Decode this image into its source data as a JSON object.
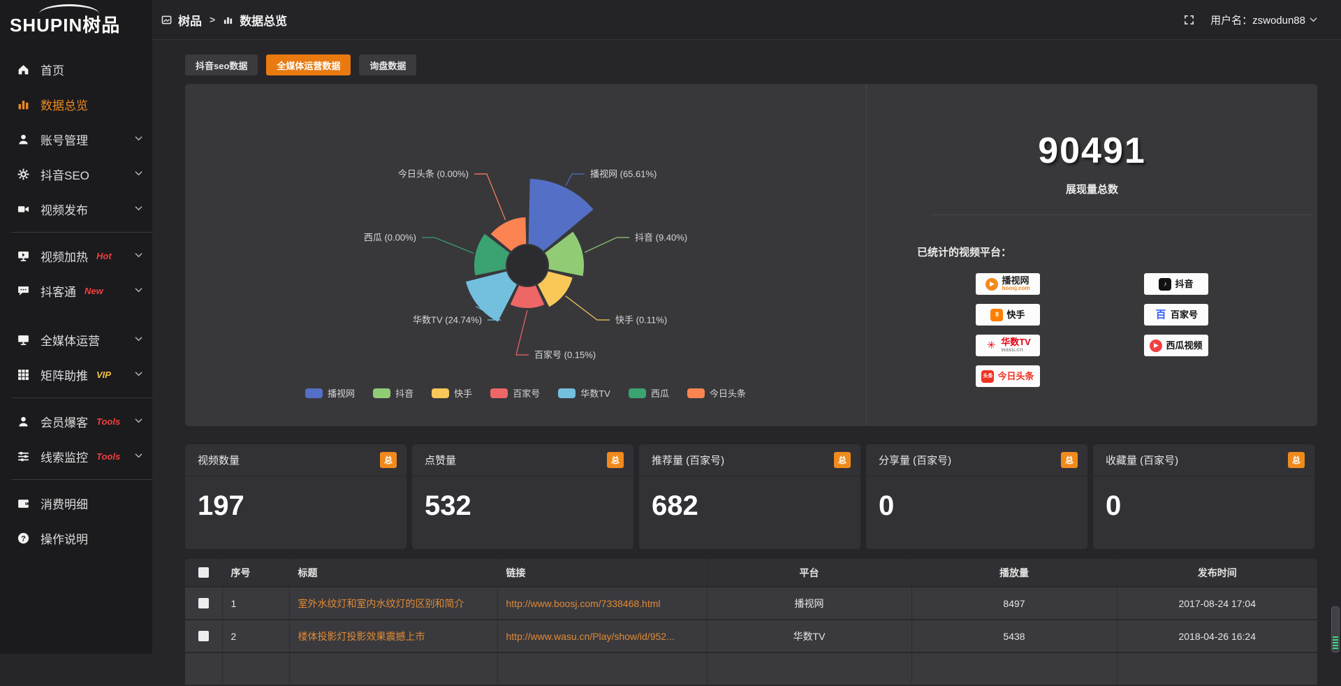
{
  "app": {
    "logo_text": "SHUPIN树品"
  },
  "topbar": {
    "breadcrumb": {
      "root": "树品",
      "separator": ">",
      "current": "数据总览"
    },
    "username_label": "用户名：zswodun88"
  },
  "sidebar": {
    "items": [
      {
        "label": "首页",
        "icon": "home"
      },
      {
        "label": "数据总览",
        "icon": "chart",
        "active": true
      },
      {
        "label": "账号管理",
        "icon": "user",
        "chevron": true
      },
      {
        "label": "抖音SEO",
        "icon": "gear",
        "chevron": true
      },
      {
        "label": "视频发布",
        "icon": "video",
        "chevron": true,
        "divider_after": true
      },
      {
        "label": "视频加热",
        "icon": "monitor-play",
        "badge": "Hot",
        "badge_color": "#f03e3e",
        "chevron": true
      },
      {
        "label": "抖客通",
        "icon": "chat",
        "badge": "New",
        "badge_color": "#f03e3e",
        "chevron": true,
        "gap_after": true
      },
      {
        "label": "全媒体运营",
        "icon": "monitor",
        "chevron": true
      },
      {
        "label": "矩阵助推",
        "icon": "grid",
        "badge": "VIP",
        "badge_color": "#f0c23c",
        "chevron": true,
        "divider_after": true
      },
      {
        "label": "会员爆客",
        "icon": "person",
        "badge": "Tools",
        "badge_color": "#f03e3e",
        "chevron": true
      },
      {
        "label": "线索监控",
        "icon": "sliders",
        "badge": "Tools",
        "badge_color": "#f03e3e",
        "chevron": true,
        "divider_after": true
      },
      {
        "label": "消费明细",
        "icon": "wallet"
      },
      {
        "label": "操作说明",
        "icon": "help"
      }
    ]
  },
  "tabs": {
    "active_index": 1,
    "items": [
      {
        "label": "抖音seo数据"
      },
      {
        "label": "全媒体运营数据"
      },
      {
        "label": "询盘数据"
      }
    ]
  },
  "chart_data": {
    "type": "pie",
    "variant": "nightingale-rose-donut",
    "categories": [
      "播视网",
      "抖音",
      "快手",
      "百家号",
      "华数TV",
      "西瓜",
      "今日头条"
    ],
    "values": [
      65.61,
      9.4,
      0.11,
      0.15,
      24.74,
      0.0,
      0.0
    ],
    "value_unit": "%",
    "label_format": "{name} ({value}%)",
    "colors": [
      "#5470c6",
      "#91cc75",
      "#fac858",
      "#ee6666",
      "#73c0de",
      "#3ba272",
      "#fc8452"
    ],
    "display_radii": [
      125,
      82,
      68,
      62,
      92,
      77,
      70
    ],
    "inner_radius": 30,
    "equal_angles": true,
    "start_angle_deg": 0,
    "legend_position": "bottom"
  },
  "overview": {
    "total_value": "90491",
    "total_label": "展现量总数",
    "platforms_title": "已统计的视频平台：",
    "platforms": [
      {
        "name": "播视网",
        "sub": "boosj.com",
        "logo_glyph": "▶",
        "logo_bg": "#f28a1c",
        "logo_color": "#ffffff",
        "logo_round": true,
        "name_color": "#222222",
        "sub_color": "#f28a1c"
      },
      {
        "name": "抖音",
        "logo_glyph": "♪",
        "logo_bg": "#111111",
        "logo_color": "#ffffff",
        "name_color": "#111111"
      },
      {
        "name": "快手",
        "logo_glyph": "8",
        "logo_bg": "#ff7e00",
        "logo_color": "#ffffff",
        "name_color": "#111111"
      },
      {
        "name": "百家号",
        "logo_glyph": "百",
        "logo_bg": "#ffffff",
        "logo_color": "#315efb",
        "name_color": "#111111"
      },
      {
        "name": "华数TV",
        "sub": "wasu.cn",
        "logo_glyph": "✳",
        "logo_bg": "#ffffff",
        "logo_color": "#e60012",
        "name_color": "#e60012",
        "sub_color": "#999999"
      },
      {
        "name": "西瓜视频",
        "logo_glyph": "▶",
        "logo_bg": "#f04142",
        "logo_color": "#ffffff",
        "logo_round": true,
        "name_color": "#111111"
      },
      {
        "name": "今日头条",
        "logo_glyph": "头条",
        "logo_bg": "#ed3321",
        "logo_color": "#ffffff",
        "name_color": "#ed3321"
      }
    ]
  },
  "cards": {
    "badge_label": "总",
    "items": [
      {
        "title": "视频数量",
        "value": "197"
      },
      {
        "title": "点赞量",
        "value": "532"
      },
      {
        "title": "推荐量 (百家号)",
        "value": "682"
      },
      {
        "title": "分享量 (百家号)",
        "value": "0"
      },
      {
        "title": "收藏量 (百家号)",
        "value": "0"
      }
    ]
  },
  "table": {
    "headers": [
      "序号",
      "标题",
      "链接",
      "平台",
      "播放量",
      "发布时间"
    ],
    "rows": [
      {
        "num": "1",
        "title": "室外水纹灯和室内水纹灯的区别和简介",
        "link": "http://www.boosj.com/7338468.html",
        "platform": "播视网",
        "plays": "8497",
        "time": "2017-08-24 17:04"
      },
      {
        "num": "2",
        "title": "楼体投影灯投影效果震撼上市",
        "link": "http://www.wasu.cn/Play/show/id/952...",
        "platform": "华数TV",
        "plays": "5438",
        "time": "2018-04-26 16:24"
      }
    ]
  },
  "colors": {
    "accent_orange": "#e87a10",
    "badge_orange": "#f08a1c",
    "link_orange": "#e08a35",
    "sidebar_bg": "#1b1b1e",
    "panel_bg": "#38383b"
  }
}
